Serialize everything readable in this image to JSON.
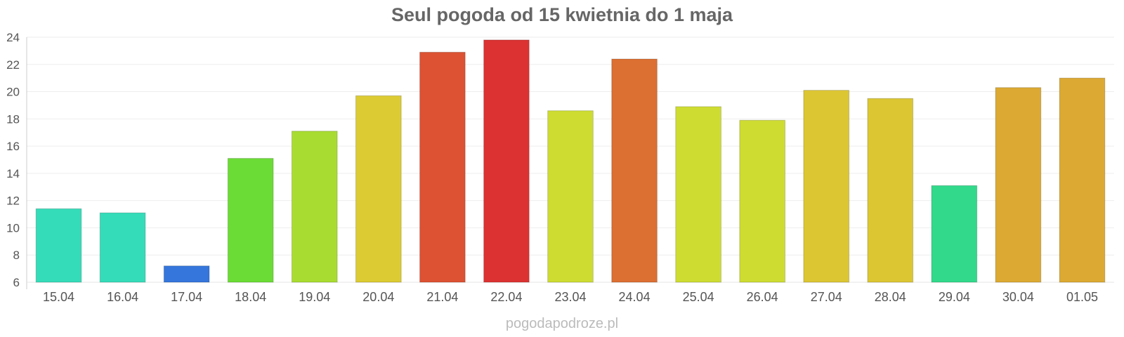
{
  "chart_data": {
    "type": "bar",
    "title": "Seul pogoda od 15 kwietnia do 1 maja",
    "xlabel": "",
    "ylabel": "",
    "ylim": [
      6,
      24
    ],
    "yticks": [
      6,
      8,
      10,
      12,
      14,
      16,
      18,
      20,
      22,
      24
    ],
    "grid": true,
    "categories": [
      "15.04",
      "16.04",
      "17.04",
      "18.04",
      "19.04",
      "20.04",
      "21.04",
      "22.04",
      "23.04",
      "24.04",
      "25.04",
      "26.04",
      "27.04",
      "28.04",
      "29.04",
      "30.04",
      "01.05"
    ],
    "values": [
      11.4,
      11.1,
      7.2,
      15.1,
      17.1,
      19.7,
      22.9,
      23.8,
      18.6,
      22.4,
      18.9,
      17.9,
      20.1,
      19.5,
      13.1,
      20.3,
      21.0
    ],
    "colors": [
      "#35dcb9",
      "#35dcb9",
      "#3576dc",
      "#6bdc35",
      "#a9dc30",
      "#dccb32",
      "#dc5232",
      "#dc3232",
      "#cedc32",
      "#dc6f32",
      "#cedc32",
      "#cedc32",
      "#dcc632",
      "#dcc632",
      "#32d98a",
      "#dca932",
      "#dca932"
    ]
  },
  "watermark": "pogodapodroze.pl"
}
